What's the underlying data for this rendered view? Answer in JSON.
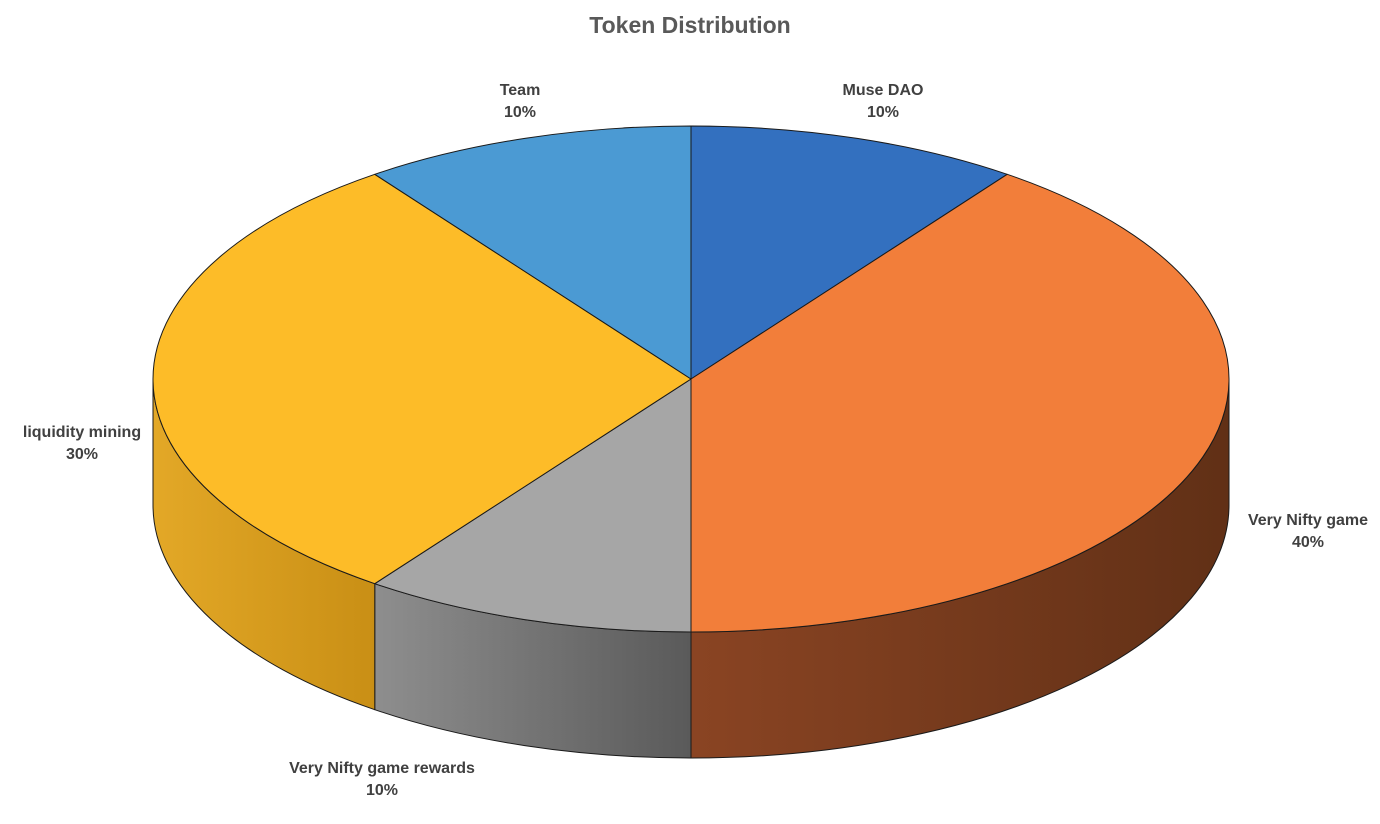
{
  "chart_data": {
    "type": "pie",
    "variant": "3d",
    "title": "Token Distribution",
    "legend": "none",
    "slices": [
      {
        "name": "Muse DAO",
        "value": 10,
        "label": "10%",
        "color": "#3370BF"
      },
      {
        "name": "Very Nifty game",
        "value": 40,
        "label": "40%",
        "color": "#F27E3A"
      },
      {
        "name": "Very Nifty game rewards",
        "value": 10,
        "label": "10%",
        "color": "#A6A6A6"
      },
      {
        "name": "liquidity mining",
        "value": 30,
        "label": "30%",
        "color": "#FDBC28"
      },
      {
        "name": "Team",
        "value": 10,
        "label": "10%",
        "color": "#4B9AD3"
      }
    ],
    "side_colors": {
      "Very Nifty game": [
        "#8A4423",
        "#613016"
      ],
      "Very Nifty game rewards": [
        "#8E8E8E",
        "#5A5A5A"
      ],
      "liquidity mining": [
        "#E3A827",
        "#C98F15"
      ]
    }
  }
}
